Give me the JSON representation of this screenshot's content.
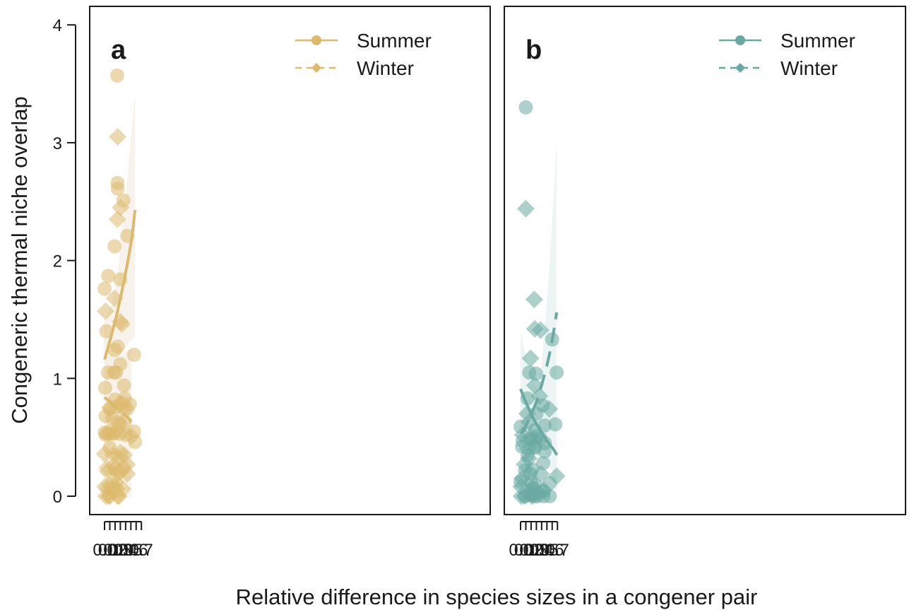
{
  "figure": {
    "y_axis_title": "Congeneric thermal niche overlap",
    "x_axis_title": "Relative difference in species sizes in a congener pair"
  },
  "chart_data": [
    {
      "type": "scatter",
      "panel_label": "a",
      "color": "#DDB96E",
      "ribbon_color": "#F4EFE5",
      "xlim": [
        0,
        0.7
      ],
      "ylim": [
        0,
        4
      ],
      "x_ticks": [
        "0.0",
        "0.1",
        "0.2",
        "0.3",
        "0.4",
        "0.5",
        "0.6",
        "0.7"
      ],
      "y_ticks": [
        "0",
        "1",
        "2",
        "3",
        "4"
      ],
      "legend": {
        "position": "top-right",
        "items": [
          "Summer",
          "Winter"
        ]
      },
      "series": [
        {
          "name": "Summer",
          "marker": "circle",
          "line_style": "solid",
          "fit": {
            "x": [
              0,
              0.058,
              0.116,
              0.174,
              0.232,
              0.29,
              0.348,
              0.406,
              0.464,
              0.522,
              0.58
            ],
            "y": [
              1.16,
              1.25,
              1.34,
              1.44,
              1.54,
              1.66,
              1.78,
              1.91,
              2.05,
              2.2,
              2.43
            ],
            "lower": [
              0.88,
              0.97,
              1.05,
              1.12,
              1.17,
              1.2,
              1.23,
              1.27,
              1.3,
              1.33,
              1.36
            ],
            "upper": [
              1.5,
              1.56,
              1.6,
              1.69,
              1.84,
              2.05,
              2.3,
              2.58,
              2.86,
              3.14,
              3.43
            ]
          },
          "points": [
            {
              "x": 0.0,
              "y": 1.76
            },
            {
              "x": 0.013,
              "y": 0.92
            },
            {
              "x": 0.02,
              "y": 0.68
            },
            {
              "x": 0.005,
              "y": 0.54
            },
            {
              "x": 0.023,
              "y": 0.52
            },
            {
              "x": 0.035,
              "y": 1.4
            },
            {
              "x": 0.065,
              "y": 1.05
            },
            {
              "x": 0.07,
              "y": 1.87
            },
            {
              "x": 0.06,
              "y": 0.53
            },
            {
              "x": 0.09,
              "y": 0.55
            },
            {
              "x": 0.1,
              "y": 0.74
            },
            {
              "x": 0.1,
              "y": 0.41
            },
            {
              "x": 0.12,
              "y": 0.53
            },
            {
              "x": 0.15,
              "y": 0.66
            },
            {
              "x": 0.17,
              "y": 0.53
            },
            {
              "x": 0.18,
              "y": 1.05
            },
            {
              "x": 0.19,
              "y": 2.12
            },
            {
              "x": 0.195,
              "y": 1.24
            },
            {
              "x": 0.2,
              "y": 0.82
            },
            {
              "x": 0.2,
              "y": 0.23
            },
            {
              "x": 0.22,
              "y": 1.05
            },
            {
              "x": 0.22,
              "y": 0.76
            },
            {
              "x": 0.24,
              "y": 3.57
            },
            {
              "x": 0.245,
              "y": 2.66
            },
            {
              "x": 0.25,
              "y": 2.61
            },
            {
              "x": 0.25,
              "y": 1.27
            },
            {
              "x": 0.26,
              "y": 0.63
            },
            {
              "x": 0.295,
              "y": 0.61
            },
            {
              "x": 0.295,
              "y": 0.53
            },
            {
              "x": 0.3,
              "y": 1.84
            },
            {
              "x": 0.3,
              "y": 1.12
            },
            {
              "x": 0.33,
              "y": 0.79
            },
            {
              "x": 0.36,
              "y": 2.51
            },
            {
              "x": 0.37,
              "y": 0.94
            },
            {
              "x": 0.38,
              "y": 0.83
            },
            {
              "x": 0.37,
              "y": 0.74
            },
            {
              "x": 0.38,
              "y": 0.63
            },
            {
              "x": 0.41,
              "y": 0.52
            },
            {
              "x": 0.43,
              "y": 2.21
            },
            {
              "x": 0.43,
              "y": 0.74
            },
            {
              "x": 0.48,
              "y": 0.78
            },
            {
              "x": 0.56,
              "y": 1.2
            },
            {
              "x": 0.56,
              "y": 0.55
            },
            {
              "x": 0.58,
              "y": 0.46
            }
          ]
        },
        {
          "name": "Winter",
          "marker": "diamond",
          "line_style": "dashed",
          "fit": {
            "x": [
              0,
              0.051,
              0.102,
              0.153,
              0.204,
              0.255,
              0.306,
              0.357,
              0.408,
              0.459,
              0.51
            ],
            "y": [
              0.84,
              0.82,
              0.8,
              0.78,
              0.76,
              0.74,
              0.72,
              0.7,
              0.68,
              0.66,
              0.63
            ],
            "lower": [
              0.3,
              0.33,
              0.35,
              0.36,
              0.34,
              0.3,
              0.24,
              0.17,
              0.09,
              0.02,
              -0.03
            ],
            "upper": [
              1.5,
              1.35,
              1.24,
              1.18,
              1.17,
              1.18,
              1.19,
              1.21,
              1.23,
              1.24,
              1.25
            ]
          },
          "points": [
            {
              "x": 0.02,
              "y": 1.57
            },
            {
              "x": 0.0,
              "y": 0.36
            },
            {
              "x": 0.01,
              "y": 0.08
            },
            {
              "x": 0.025,
              "y": 0.0
            },
            {
              "x": 0.05,
              "y": 0.24
            },
            {
              "x": 0.06,
              "y": 0.21
            },
            {
              "x": 0.065,
              "y": 0.06
            },
            {
              "x": 0.08,
              "y": 0.0
            },
            {
              "x": 0.1,
              "y": 0.75
            },
            {
              "x": 0.1,
              "y": 0.1
            },
            {
              "x": 0.1,
              "y": 0.0
            },
            {
              "x": 0.155,
              "y": 0.05
            },
            {
              "x": 0.17,
              "y": 0.35
            },
            {
              "x": 0.18,
              "y": 0.26
            },
            {
              "x": 0.19,
              "y": 1.68
            },
            {
              "x": 0.19,
              "y": 0.08
            },
            {
              "x": 0.22,
              "y": 0.55
            },
            {
              "x": 0.22,
              "y": 0.12
            },
            {
              "x": 0.23,
              "y": 0.06
            },
            {
              "x": 0.25,
              "y": 3.05
            },
            {
              "x": 0.245,
              "y": 2.35
            },
            {
              "x": 0.25,
              "y": 0.19
            },
            {
              "x": 0.25,
              "y": 0.0
            },
            {
              "x": 0.27,
              "y": 0.33
            },
            {
              "x": 0.275,
              "y": 0.0
            },
            {
              "x": 0.295,
              "y": 0.78
            },
            {
              "x": 0.295,
              "y": 0.2
            },
            {
              "x": 0.3,
              "y": 1.48
            },
            {
              "x": 0.305,
              "y": 2.45
            },
            {
              "x": 0.3,
              "y": 0.37
            },
            {
              "x": 0.33,
              "y": 1.46
            },
            {
              "x": 0.345,
              "y": 0.06
            },
            {
              "x": 0.36,
              "y": 0.24
            },
            {
              "x": 0.37,
              "y": 0.35
            },
            {
              "x": 0.43,
              "y": 0.27
            },
            {
              "x": 0.43,
              "y": 0.19
            },
            {
              "x": 0.51,
              "y": 0.51
            }
          ]
        }
      ]
    },
    {
      "type": "scatter",
      "panel_label": "b",
      "color": "#6AA9A2",
      "ribbon_color": "#E6F1EF",
      "xlim": [
        0,
        0.7
      ],
      "ylim": [
        0,
        4
      ],
      "x_ticks": [
        "0.0",
        "0.1",
        "0.2",
        "0.3",
        "0.4",
        "0.5",
        "0.6",
        "0.7"
      ],
      "y_ticks": [
        "0",
        "1",
        "2",
        "3",
        "4"
      ],
      "legend": {
        "position": "top-right",
        "items": [
          "Summer",
          "Winter"
        ]
      },
      "series": [
        {
          "name": "Summer",
          "marker": "circle",
          "line_style": "solid",
          "fit": {
            "x": [
              0,
              0.069,
              0.138,
              0.207,
              0.276,
              0.345,
              0.414,
              0.483,
              0.552,
              0.621,
              0.69
            ],
            "y": [
              0.91,
              0.83,
              0.76,
              0.69,
              0.63,
              0.58,
              0.53,
              0.48,
              0.44,
              0.4,
              0.35
            ],
            "lower": [
              0.45,
              0.52,
              0.56,
              0.57,
              0.55,
              0.5,
              0.44,
              0.36,
              0.27,
              0.17,
              0.0
            ],
            "upper": [
              1.4,
              1.26,
              1.13,
              1.02,
              0.94,
              0.88,
              0.83,
              0.8,
              0.8,
              0.79,
              0.79
            ]
          },
          "points": [
            {
              "x": 0.0,
              "y": 0.59
            },
            {
              "x": 0.0,
              "y": 0.12
            },
            {
              "x": 0.03,
              "y": 0.42
            },
            {
              "x": 0.04,
              "y": 0.47
            },
            {
              "x": 0.08,
              "y": 0.0
            },
            {
              "x": 0.085,
              "y": 0.22
            },
            {
              "x": 0.1,
              "y": 3.3
            },
            {
              "x": 0.13,
              "y": 0.83
            },
            {
              "x": 0.135,
              "y": 0.35
            },
            {
              "x": 0.165,
              "y": 1.05
            },
            {
              "x": 0.165,
              "y": 0.01
            },
            {
              "x": 0.185,
              "y": 0.19
            },
            {
              "x": 0.19,
              "y": 0.48
            },
            {
              "x": 0.2,
              "y": 0.12
            },
            {
              "x": 0.22,
              "y": 0.23
            },
            {
              "x": 0.22,
              "y": 0.06
            },
            {
              "x": 0.23,
              "y": 0.01
            },
            {
              "x": 0.24,
              "y": 0.07
            },
            {
              "x": 0.26,
              "y": 0.42
            },
            {
              "x": 0.27,
              "y": 0.0
            },
            {
              "x": 0.27,
              "y": 0.56
            },
            {
              "x": 0.28,
              "y": 0.41
            },
            {
              "x": 0.285,
              "y": 0.47
            },
            {
              "x": 0.29,
              "y": 1.04
            },
            {
              "x": 0.3,
              "y": 0.7
            },
            {
              "x": 0.3,
              "y": 0.51
            },
            {
              "x": 0.32,
              "y": 0.0
            },
            {
              "x": 0.38,
              "y": 0.49
            },
            {
              "x": 0.42,
              "y": 0.77
            },
            {
              "x": 0.43,
              "y": 0.28
            },
            {
              "x": 0.44,
              "y": 0.04
            },
            {
              "x": 0.44,
              "y": 0.0
            },
            {
              "x": 0.455,
              "y": 0.6
            },
            {
              "x": 0.455,
              "y": 0.38
            },
            {
              "x": 0.46,
              "y": 0.45
            },
            {
              "x": 0.55,
              "y": 0.11
            },
            {
              "x": 0.555,
              "y": 0.0
            },
            {
              "x": 0.6,
              "y": 1.33
            },
            {
              "x": 0.66,
              "y": 0.61
            },
            {
              "x": 0.685,
              "y": 1.05
            }
          ]
        },
        {
          "name": "Winter",
          "marker": "diamond",
          "line_style": "dashed",
          "fit": {
            "x": [
              0.015,
              0.082,
              0.149,
              0.216,
              0.283,
              0.35,
              0.417,
              0.484,
              0.551,
              0.618,
              0.685
            ],
            "y": [
              0.53,
              0.58,
              0.64,
              0.71,
              0.78,
              0.87,
              0.97,
              1.08,
              1.21,
              1.37,
              1.56
            ],
            "lower": [
              0.44,
              0.5,
              0.51,
              0.52,
              0.52,
              0.53,
              0.53,
              0.54,
              0.54,
              0.55,
              0.56
            ],
            "upper": [
              0.94,
              0.91,
              0.89,
              0.87,
              0.86,
              0.92,
              1.2,
              1.56,
              1.98,
              2.47,
              3.01
            ]
          },
          "points": [
            {
              "x": 0.01,
              "y": 0.08
            },
            {
              "x": 0.015,
              "y": 0.0
            },
            {
              "x": 0.03,
              "y": 0.15
            },
            {
              "x": 0.04,
              "y": 0.52
            },
            {
              "x": 0.08,
              "y": 0.0
            },
            {
              "x": 0.075,
              "y": 0.27
            },
            {
              "x": 0.1,
              "y": 2.44
            },
            {
              "x": 0.125,
              "y": 0.7
            },
            {
              "x": 0.14,
              "y": 0.4
            },
            {
              "x": 0.155,
              "y": 0.32
            },
            {
              "x": 0.165,
              "y": 0.63
            },
            {
              "x": 0.19,
              "y": 1.17
            },
            {
              "x": 0.2,
              "y": 0.5
            },
            {
              "x": 0.22,
              "y": 0.0
            },
            {
              "x": 0.225,
              "y": 0.02
            },
            {
              "x": 0.26,
              "y": 1.67
            },
            {
              "x": 0.27,
              "y": 1.42
            },
            {
              "x": 0.27,
              "y": 0.94
            },
            {
              "x": 0.28,
              "y": 0.1
            },
            {
              "x": 0.34,
              "y": 0.03
            },
            {
              "x": 0.36,
              "y": 0.85
            },
            {
              "x": 0.38,
              "y": 1.41
            },
            {
              "x": 0.385,
              "y": 0.19
            },
            {
              "x": 0.44,
              "y": 0.05
            },
            {
              "x": 0.545,
              "y": 0.74
            },
            {
              "x": 0.685,
              "y": 0.17
            }
          ]
        }
      ]
    }
  ]
}
